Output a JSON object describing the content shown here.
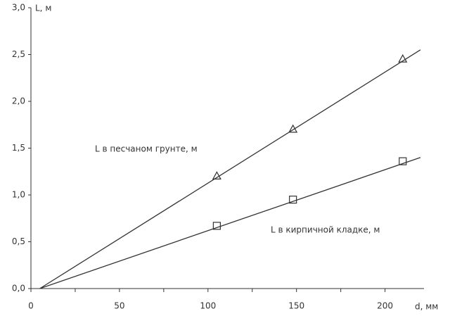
{
  "chart_data": {
    "type": "scatter",
    "x_label": "d, мм",
    "y_label": "L, м",
    "x": [
      105,
      148,
      210
    ],
    "series": [
      {
        "name": "L в песчаном грунте, м",
        "marker": "triangle",
        "color": "#333333",
        "values": [
          1.2,
          1.7,
          2.45
        ],
        "trend": {
          "x": [
            5,
            220
          ],
          "values": [
            0,
            2.55
          ]
        }
      },
      {
        "name": "L в кирпичной кладке, м",
        "marker": "square",
        "color": "#333333",
        "values": [
          0.67,
          0.95,
          1.36
        ],
        "trend": {
          "x": [
            5,
            220
          ],
          "values": [
            0,
            1.4
          ]
        }
      }
    ],
    "xlim": [
      0,
      222
    ],
    "ylim": [
      0,
      3
    ],
    "xticks": [
      0,
      50,
      100,
      150,
      200
    ],
    "xminor_ticks": [
      25,
      75,
      125,
      175
    ],
    "yticks": [
      {
        "value": 0,
        "label": "0,0"
      },
      {
        "value": 0.5,
        "label": "0,5"
      },
      {
        "value": 1,
        "label": "1,0"
      },
      {
        "value": 1.5,
        "label": "1,5"
      },
      {
        "value": 2,
        "label": "2,0"
      },
      {
        "value": 2.5,
        "label": "2,5"
      },
      {
        "value": 3,
        "label": "3,0"
      }
    ]
  }
}
